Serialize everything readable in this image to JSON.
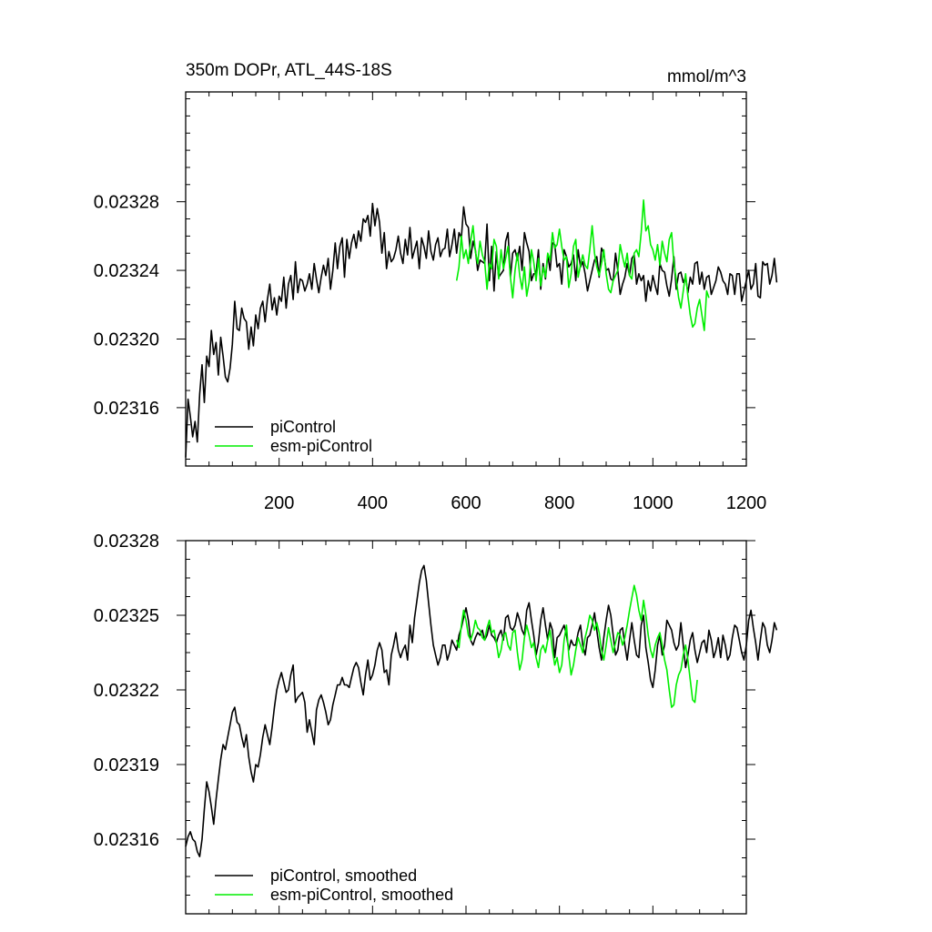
{
  "figure": {
    "title_left": "350m DOPr, ATL_44S-18S",
    "title_right": "mmol/m^3"
  },
  "chart_data": [
    {
      "type": "line",
      "name": "raw",
      "xlim": [
        0,
        1200
      ],
      "ylim": [
        23126,
        23344
      ],
      "y_scale": 1e-06,
      "y_tick_values": [
        23160,
        23200,
        23240,
        23280
      ],
      "y_tick_labels": [
        "0.02316",
        "0.02320",
        "0.02324",
        "0.02328"
      ],
      "x_tick_values": [
        200,
        400,
        600,
        800,
        1000,
        1200
      ],
      "x_tick_labels": [
        "200",
        "400",
        "600",
        "800",
        "1000",
        "1200"
      ],
      "legend": {
        "position": "bottom-left",
        "entries": [
          "piControl",
          "esm-piControl"
        ]
      },
      "series": [
        {
          "name": "piControl",
          "color": "#000000",
          "x_start": 0,
          "x_step": 5,
          "values": [
            23131,
            23165,
            23155,
            23143,
            23152,
            23140,
            23168,
            23185,
            23163,
            23190,
            23184,
            23205,
            23191,
            23198,
            23179,
            23201,
            23190,
            23178,
            23175,
            23183,
            23197,
            23222,
            23206,
            23205,
            23218,
            23212,
            23210,
            23194,
            23207,
            23196,
            23214,
            23206,
            23218,
            23222,
            23210,
            23223,
            23232,
            23217,
            23224,
            23214,
            23225,
            23222,
            23236,
            23218,
            23232,
            23237,
            23223,
            23245,
            23227,
            23235,
            23234,
            23228,
            23232,
            23238,
            23229,
            23244,
            23235,
            23227,
            23236,
            23243,
            23237,
            23247,
            23229,
            23240,
            23256,
            23241,
            23254,
            23259,
            23236,
            23258,
            23247,
            23256,
            23261,
            23253,
            23263,
            23257,
            23270,
            23268,
            23272,
            23260,
            23279,
            23266,
            23276,
            23268,
            23250,
            23262,
            23241,
            23251,
            23245,
            23247,
            23252,
            23260,
            23250,
            23244,
            23258,
            23249,
            23265,
            23247,
            23252,
            23257,
            23241,
            23259,
            23254,
            23247,
            23263,
            23251,
            23246,
            23255,
            23259,
            23248,
            23252,
            23253,
            23264,
            23248,
            23255,
            23264,
            23250,
            23262,
            23259,
            23277,
            23267,
            23265,
            23247,
            23257,
            23252,
            23240,
            23246,
            23245,
            23244,
            23267,
            23234,
            23254,
            23228,
            23251,
            23236,
            23238,
            23240,
            23257,
            23262,
            23236,
            23250,
            23252,
            23246,
            23254,
            23240,
            23262,
            23256,
            23251,
            23234,
            23238,
            23238,
            23252,
            23229,
            23244,
            23235,
            23249,
            23240,
            23256,
            23255,
            23242,
            23244,
            23232,
            23252,
            23248,
            23242,
            23244,
            23249,
            23234,
            23252,
            23242,
            23245,
            23238,
            23228,
            23234,
            23240,
            23246,
            23248,
            23236,
            23253,
            23250,
            23240,
            23241,
            23235,
            23234,
            23250,
            23240,
            23226,
            23232,
            23236,
            23244,
            23237,
            23247,
            23249,
            23232,
            23238,
            23234,
            23237,
            23222,
            23234,
            23228,
            23237,
            23231,
            23226,
            23244,
            23240,
            23239,
            23231,
            23225,
            23235,
            23248,
            23229,
            23238,
            23239,
            23233,
            23236,
            23227,
            23236,
            23232,
            23244,
            23245,
            23232,
            23239,
            23229,
            23236,
            23237,
            23226,
            23230,
            23234,
            23242,
            23239,
            23234,
            23232,
            23226,
            23238,
            23237,
            23226,
            23238,
            23238,
            23222,
            23228,
            23234,
            23240,
            23229,
            23232,
            23244,
            23225,
            23224,
            23245,
            23243,
            23244,
            23232,
            23237,
            23247,
            23233
          ]
        },
        {
          "name": "esm-piControl",
          "color": "#00ee00",
          "x_start": 580,
          "x_step": 5,
          "values": [
            23234,
            23242,
            23260,
            23247,
            23252,
            23244,
            23257,
            23266,
            23251,
            23244,
            23257,
            23249,
            23245,
            23229,
            23244,
            23241,
            23258,
            23254,
            23235,
            23252,
            23241,
            23247,
            23254,
            23236,
            23224,
            23240,
            23250,
            23237,
            23229,
            23242,
            23225,
            23233,
            23252,
            23245,
            23234,
            23247,
            23231,
            23242,
            23236,
            23250,
            23246,
            23262,
            23253,
            23255,
            23264,
            23254,
            23246,
            23248,
            23230,
            23238,
            23254,
            23258,
            23236,
            23243,
            23249,
            23243,
            23241,
            23252,
            23266,
            23250,
            23242,
            23237,
            23244,
            23252,
            23238,
            23229,
            23227,
            23234,
            23237,
            23240,
            23255,
            23248,
            23242,
            23250,
            23237,
            23235,
            23250,
            23252,
            23248,
            23262,
            23281,
            23263,
            23266,
            23255,
            23252,
            23246,
            23255,
            23243,
            23257,
            23250,
            23245,
            23258,
            23262,
            23244,
            23235,
            23224,
            23218,
            23228,
            23238,
            23225,
            23214,
            23207,
            23209,
            23218,
            23223,
            23214,
            23205,
            23228,
            23224
          ]
        }
      ]
    },
    {
      "type": "line",
      "name": "smoothed",
      "xlim": [
        0,
        1200
      ],
      "ylim": [
        23130,
        23280
      ],
      "y_scale": 1e-06,
      "y_tick_values": [
        23160,
        23190,
        23220,
        23250,
        23280
      ],
      "y_tick_labels": [
        "0.02316",
        "0.02319",
        "0.02322",
        "0.02325",
        "0.02328"
      ],
      "x_tick_values": [
        200,
        400,
        600,
        800,
        1000,
        1200
      ],
      "x_tick_labels": [
        "",
        "",
        "",
        "",
        "",
        ""
      ],
      "legend": {
        "position": "bottom-left",
        "entries": [
          "piControl, smoothed",
          "esm-piControl, smoothed"
        ]
      },
      "series": [
        {
          "name": "piControl, smoothed",
          "color": "#000000",
          "x_start": 0,
          "x_step": 5,
          "values": [
            23157,
            23161,
            23163,
            23160,
            23159,
            23155,
            23153,
            23160,
            23172,
            23183,
            23179,
            23173,
            23166,
            23176,
            23184,
            23192,
            23198,
            23196,
            23201,
            23206,
            23211,
            23213,
            23207,
            23206,
            23201,
            23197,
            23202,
            23193,
            23187,
            23183,
            23190,
            23189,
            23194,
            23201,
            23206,
            23202,
            23198,
            23205,
            23213,
            23220,
            23224,
            23227,
            23223,
            23219,
            23220,
            23226,
            23230,
            23215,
            23217,
            23218,
            23219,
            23215,
            23203,
            23208,
            23203,
            23198,
            23212,
            23216,
            23218,
            23215,
            23211,
            23206,
            23208,
            23214,
            23218,
            23222,
            23222,
            23225,
            23222,
            23222,
            23221,
            23225,
            23229,
            23231,
            23229,
            23223,
            23218,
            23226,
            23232,
            23224,
            23226,
            23230,
            23236,
            23239,
            23236,
            23227,
            23228,
            23222,
            23234,
            23238,
            23243,
            23236,
            23233,
            23236,
            23238,
            23232,
            23246,
            23239,
            23249,
            23256,
            23263,
            23268,
            23270,
            23264,
            23255,
            23246,
            23238,
            23234,
            23230,
            23233,
            23238,
            23238,
            23232,
            23235,
            23240,
            23238,
            23236,
            23242,
            23245,
            23249,
            23253,
            23248,
            23240,
            23238,
            23241,
            23243,
            23242,
            23244,
            23240,
            23242,
            23246,
            23242,
            23241,
            23239,
            23242,
            23244,
            23240,
            23249,
            23250,
            23245,
            23244,
            23246,
            23251,
            23248,
            23244,
            23242,
            23252,
            23255,
            23248,
            23242,
            23234,
            23239,
            23248,
            23253,
            23246,
            23240,
            23247,
            23244,
            23233,
            23241,
            23242,
            23244,
            23246,
            23242,
            23236,
            23240,
            23238,
            23238,
            23243,
            23246,
            23238,
            23234,
            23241,
            23242,
            23246,
            23251,
            23244,
            23237,
            23232,
            23241,
            23248,
            23254,
            23250,
            23242,
            23234,
            23236,
            23244,
            23245,
            23238,
            23232,
            23240,
            23247,
            23240,
            23234,
            23233,
            23246,
            23250,
            23237,
            23231,
            23224,
            23221,
            23228,
            23238,
            23242,
            23234,
            23238,
            23248,
            23246,
            23244,
            23239,
            23236,
            23238,
            23247,
            23238,
            23229,
            23234,
            23240,
            23243,
            23236,
            23231,
            23235,
            23239,
            23240,
            23235,
            23244,
            23240,
            23233,
            23236,
            23241,
            23233,
            23242,
            23238,
            23232,
            23234,
            23241,
            23246,
            23245,
            23240,
            23235,
            23232,
            23238,
            23248,
            23252,
            23245,
            23239,
            23232,
            23240,
            23247,
            23245,
            23238,
            23235,
            23240,
            23247,
            23244
          ]
        },
        {
          "name": "esm-piControl, smoothed",
          "color": "#00ee00",
          "x_start": 580,
          "x_step": 5,
          "values": [
            23240,
            23237,
            23246,
            23252,
            23248,
            23242,
            23240,
            23243,
            23248,
            23245,
            23244,
            23241,
            23240,
            23245,
            23248,
            23243,
            23244,
            23239,
            23233,
            23236,
            23242,
            23243,
            23238,
            23236,
            23243,
            23244,
            23235,
            23228,
            23232,
            23241,
            23246,
            23242,
            23237,
            23239,
            23233,
            23229,
            23236,
            23238,
            23235,
            23240,
            23244,
            23236,
            23230,
            23233,
            23227,
            23230,
            23240,
            23246,
            23234,
            23226,
            23230,
            23236,
            23241,
            23238,
            23235,
            23241,
            23245,
            23250,
            23248,
            23244,
            23247,
            23243,
            23236,
            23232,
            23238,
            23245,
            23240,
            23235,
            23239,
            23243,
            23242,
            23238,
            23241,
            23246,
            23252,
            23257,
            23262,
            23258,
            23252,
            23248,
            23256,
            23250,
            23242,
            23236,
            23233,
            23238,
            23241,
            23243,
            23238,
            23232,
            23228,
            23220,
            23213,
            23214,
            23222,
            23226,
            23228,
            23234,
            23238,
            23232,
            23224,
            23216,
            23215,
            23224
          ]
        }
      ]
    }
  ]
}
